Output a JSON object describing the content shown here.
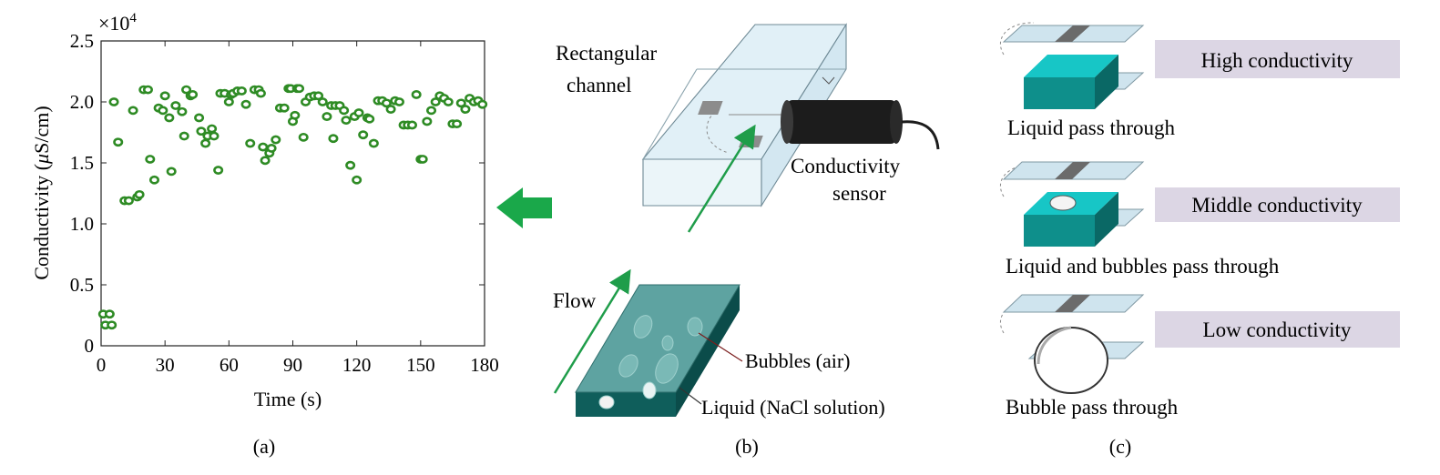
{
  "panel_a": {
    "caption": "(a)",
    "exponent_prefix": "×10",
    "exponent_power": "4",
    "ylabel_prefix": "Conductivity (",
    "ylabel_mu": "μ",
    "ylabel_suffix": "S/cm)",
    "xlabel": "Time (s)",
    "yticks": [
      "0",
      "0.5",
      "1.0",
      "1.5",
      "2.0",
      "2.5"
    ],
    "xticks": [
      "0",
      "30",
      "60",
      "90",
      "120",
      "150",
      "180"
    ],
    "point_color": "#2e8b24",
    "arrow_color": "#1aa84a"
  },
  "chart_data": {
    "type": "scatter",
    "xlabel": "Time (s)",
    "ylabel": "Conductivity (μS/cm)",
    "y_multiplier": "×10^4",
    "xlim": [
      0,
      180
    ],
    "ylim": [
      0,
      2.5
    ],
    "grid": false,
    "points": [
      [
        1,
        0.26
      ],
      [
        2,
        0.17
      ],
      [
        4,
        0.26
      ],
      [
        5,
        0.17
      ],
      [
        6,
        2.0
      ],
      [
        8,
        1.67
      ],
      [
        11,
        1.19
      ],
      [
        13,
        1.19
      ],
      [
        15,
        1.93
      ],
      [
        17,
        1.22
      ],
      [
        18,
        1.24
      ],
      [
        20,
        2.1
      ],
      [
        22,
        2.1
      ],
      [
        23,
        1.53
      ],
      [
        25,
        1.36
      ],
      [
        27,
        1.95
      ],
      [
        29,
        1.93
      ],
      [
        30,
        2.05
      ],
      [
        32,
        1.87
      ],
      [
        33,
        1.43
      ],
      [
        35,
        1.97
      ],
      [
        38,
        1.92
      ],
      [
        39,
        1.72
      ],
      [
        40,
        2.1
      ],
      [
        42,
        2.05
      ],
      [
        43,
        2.06
      ],
      [
        46,
        1.87
      ],
      [
        47,
        1.76
      ],
      [
        49,
        1.66
      ],
      [
        50,
        1.72
      ],
      [
        52,
        1.78
      ],
      [
        53,
        1.72
      ],
      [
        55,
        1.44
      ],
      [
        56,
        2.07
      ],
      [
        58,
        2.07
      ],
      [
        60,
        2.0
      ],
      [
        61,
        2.06
      ],
      [
        62,
        2.07
      ],
      [
        64,
        2.09
      ],
      [
        66,
        2.09
      ],
      [
        68,
        1.98
      ],
      [
        70,
        1.66
      ],
      [
        72,
        2.1
      ],
      [
        74,
        2.1
      ],
      [
        75,
        2.07
      ],
      [
        76,
        1.63
      ],
      [
        77,
        1.52
      ],
      [
        79,
        1.58
      ],
      [
        80,
        1.62
      ],
      [
        82,
        1.69
      ],
      [
        84,
        1.95
      ],
      [
        86,
        1.95
      ],
      [
        88,
        2.11
      ],
      [
        89,
        2.11
      ],
      [
        90,
        1.84
      ],
      [
        91,
        1.89
      ],
      [
        92,
        2.11
      ],
      [
        93,
        2.11
      ],
      [
        95,
        1.71
      ],
      [
        96,
        2.0
      ],
      [
        98,
        2.04
      ],
      [
        100,
        2.05
      ],
      [
        102,
        2.05
      ],
      [
        104,
        2.0
      ],
      [
        106,
        1.88
      ],
      [
        108,
        1.97
      ],
      [
        109,
        1.7
      ],
      [
        110,
        1.97
      ],
      [
        112,
        1.97
      ],
      [
        114,
        1.93
      ],
      [
        115,
        1.85
      ],
      [
        117,
        1.48
      ],
      [
        119,
        1.88
      ],
      [
        120,
        1.36
      ],
      [
        121,
        1.91
      ],
      [
        123,
        1.73
      ],
      [
        125,
        1.87
      ],
      [
        126,
        1.86
      ],
      [
        128,
        1.66
      ],
      [
        130,
        2.01
      ],
      [
        132,
        2.01
      ],
      [
        134,
        1.99
      ],
      [
        136,
        1.94
      ],
      [
        138,
        2.01
      ],
      [
        140,
        2.0
      ],
      [
        142,
        1.81
      ],
      [
        144,
        1.81
      ],
      [
        146,
        1.81
      ],
      [
        148,
        2.06
      ],
      [
        150,
        1.53
      ],
      [
        151,
        1.53
      ],
      [
        153,
        1.84
      ],
      [
        155,
        1.93
      ],
      [
        157,
        2.0
      ],
      [
        159,
        2.05
      ],
      [
        161,
        2.03
      ],
      [
        163,
        2.0
      ],
      [
        165,
        1.82
      ],
      [
        167,
        1.82
      ],
      [
        169,
        1.99
      ],
      [
        171,
        1.94
      ],
      [
        173,
        2.03
      ],
      [
        175,
        2.0
      ],
      [
        177,
        2.01
      ],
      [
        179,
        1.98
      ]
    ]
  },
  "panel_b": {
    "caption": "(b)",
    "channel_label_line1": "Rectangular",
    "channel_label_line2": "channel",
    "sensor_label_line1": "Conductivity",
    "sensor_label_line2": "sensor",
    "flow_label": "Flow",
    "bubbles_label": "Bubbles (air)",
    "liquid_label": "Liquid (NaCl solution)",
    "liquid_color": "#0f5e5b",
    "channel_color": "#d6eaf3"
  },
  "panel_c": {
    "caption": "(c)",
    "box_color": "#dcd6e4",
    "cube_color": "#17c6c6",
    "states": [
      {
        "badge": "High conductivity",
        "caption": "Liquid pass through"
      },
      {
        "badge": "Middle conductivity",
        "caption": "Liquid and bubbles pass through"
      },
      {
        "badge": "Low conductivity",
        "caption": "Bubble pass through"
      }
    ]
  }
}
